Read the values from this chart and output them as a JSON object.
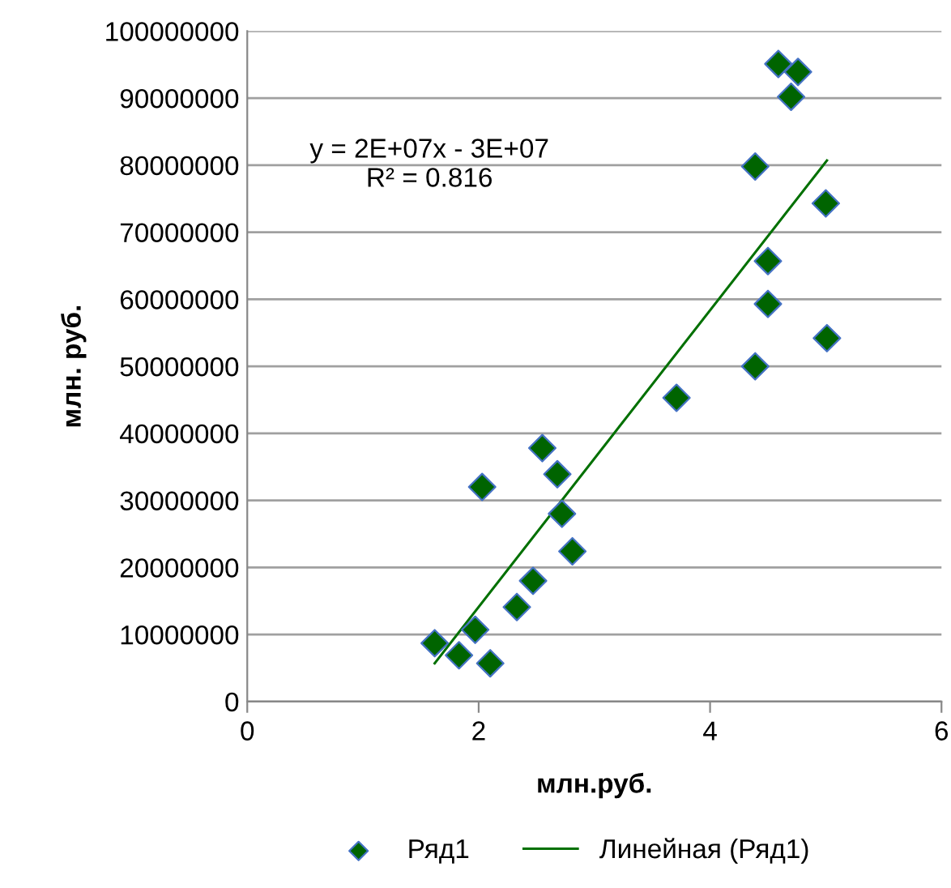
{
  "chart_data": {
    "type": "scatter",
    "xlabel": "млн.руб.",
    "ylabel": "млн. руб.",
    "xlim": [
      0,
      6
    ],
    "xticks": [
      0,
      2,
      4,
      6
    ],
    "ylim": [
      0,
      100000000
    ],
    "yticks": [
      0,
      10000000,
      20000000,
      30000000,
      40000000,
      50000000,
      60000000,
      70000000,
      80000000,
      90000000,
      100000000
    ],
    "grid": "y",
    "legend": "bottom",
    "marker": "diamond",
    "annotations": [
      "y = 2E+07x - 3E+07\nR² = 0.816"
    ],
    "series": [
      {
        "name": "Ряд1",
        "color": "#006400",
        "x": [
          1.62,
          1.83,
          1.97,
          2.1,
          2.03,
          2.33,
          2.47,
          2.55,
          2.68,
          2.72,
          2.81,
          3.71,
          4.39,
          4.39,
          4.5,
          4.5,
          4.59,
          4.76,
          4.7,
          5.0,
          5.01
        ],
        "values": [
          8700000,
          6900000,
          10700000,
          5700000,
          32000000,
          14100000,
          18000000,
          37800000,
          33900000,
          28000000,
          22400000,
          45300000,
          50000000,
          79800000,
          65700000,
          59300000,
          95100000,
          93900000,
          90200000,
          74300000,
          54200000
        ]
      },
      {
        "name": "Линейная (Ряд1)",
        "color": "#007000",
        "type": "line",
        "marker": "none",
        "x": [
          1.62,
          5.01
        ],
        "values": [
          5700000,
          80700000
        ]
      }
    ]
  }
}
